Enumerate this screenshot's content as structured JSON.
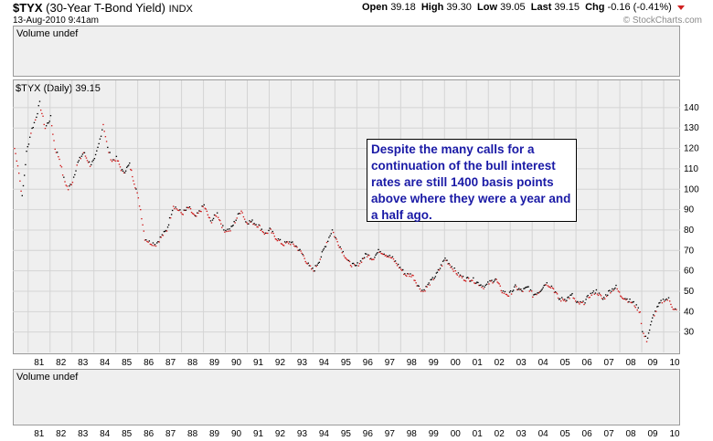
{
  "header": {
    "symbol": "$TYX",
    "name": "(30-Year T-Bond Yield)",
    "exchange": "INDX",
    "date": "13-Aug-2010 9:41am",
    "open_label": "Open",
    "open_value": "39.18",
    "high_label": "High",
    "high_value": "39.30",
    "low_label": "Low",
    "low_value": "39.05",
    "last_label": "Last",
    "last_value": "39.15",
    "chg_label": "Chg",
    "chg_value": "-0.16 (-0.41%)",
    "watermark": "© StockCharts.com"
  },
  "panels": {
    "volume_top_label": "Volume undef",
    "price_label": "$TYX (Daily) 39.15",
    "volume_bottom_label": "Volume undef"
  },
  "annotation": "Despite the many calls for a continuation of the bull interest rates are still 1400 basis points above where they were a year and a half ago.",
  "colors": {
    "up": "#000000",
    "down": "#d01818",
    "panel_bg": "#efefef",
    "annotation_text": "#1a1aa6"
  },
  "chart_data": {
    "type": "line",
    "title": "$TYX (Daily) 39.15",
    "xlabel": "",
    "ylabel": "",
    "x_ticks": [
      "81",
      "82",
      "83",
      "84",
      "85",
      "86",
      "87",
      "88",
      "89",
      "90",
      "91",
      "92",
      "93",
      "94",
      "95",
      "96",
      "97",
      "98",
      "99",
      "00",
      "01",
      "02",
      "03",
      "04",
      "05",
      "06",
      "07",
      "08",
      "09",
      "10"
    ],
    "y_ticks": [
      30,
      40,
      50,
      60,
      70,
      80,
      90,
      100,
      110,
      120,
      130,
      140
    ],
    "ylim": [
      20,
      148
    ],
    "xlim": [
      1980.3,
      2010.75
    ],
    "series": [
      {
        "x": [
          1980.35,
          1980.5,
          1980.7,
          1980.9,
          1981.1,
          1981.3,
          1981.5,
          1981.75,
          1982.0,
          1982.2,
          1982.4,
          1982.6,
          1982.8,
          1983.0,
          1983.2,
          1983.5,
          1983.8,
          1984.0,
          1984.2,
          1984.4,
          1984.6,
          1984.8,
          1985.0,
          1985.3,
          1985.6,
          1985.9,
          1986.1,
          1986.3,
          1986.5,
          1986.8,
          1987.0,
          1987.3,
          1987.6,
          1987.8,
          1988.0,
          1988.3,
          1988.6,
          1989.0,
          1989.3,
          1989.6,
          1989.9,
          1990.2,
          1990.5,
          1990.7,
          1990.9,
          1991.2,
          1991.5,
          1991.8,
          1992.0,
          1992.3,
          1992.6,
          1992.9,
          1993.2,
          1993.5,
          1993.8,
          1994.0,
          1994.3,
          1994.6,
          1994.85,
          1995.0,
          1995.3,
          1995.6,
          1995.9,
          1996.1,
          1996.4,
          1996.7,
          1997.0,
          1997.3,
          1997.6,
          1997.9,
          1998.2,
          1998.5,
          1998.8,
          1999.0,
          1999.3,
          1999.6,
          1999.9,
          2000.0,
          2000.3,
          2000.6,
          2000.9,
          2001.2,
          2001.5,
          2001.8,
          2002.0,
          2002.3,
          2002.6,
          2002.9,
          2003.2,
          2003.5,
          2003.8,
          2004.0,
          2004.3,
          2004.6,
          2004.9,
          2005.2,
          2005.5,
          2005.8,
          2006.0,
          2006.3,
          2006.6,
          2006.9,
          2007.2,
          2007.5,
          2007.8,
          2008.0,
          2008.3,
          2008.6,
          2008.9,
          2009.0,
          2009.2,
          2009.5,
          2009.8,
          2010.0,
          2010.2,
          2010.4,
          2010.6
        ],
        "values": [
          120,
          112,
          96,
          118,
          128,
          134,
          142,
          130,
          135,
          120,
          115,
          105,
          100,
          104,
          112,
          118,
          112,
          114,
          122,
          132,
          120,
          114,
          115,
          108,
          112,
          100,
          90,
          76,
          74,
          73,
          76,
          80,
          92,
          90,
          88,
          91,
          86,
          92,
          84,
          88,
          80,
          80,
          86,
          90,
          84,
          84,
          82,
          78,
          80,
          76,
          73,
          74,
          72,
          68,
          62,
          60,
          66,
          74,
          80,
          76,
          70,
          64,
          62,
          64,
          68,
          66,
          70,
          68,
          66,
          62,
          58,
          58,
          52,
          50,
          54,
          58,
          64,
          66,
          62,
          58,
          56,
          56,
          54,
          52,
          54,
          56,
          50,
          48,
          52,
          50,
          52,
          48,
          50,
          54,
          52,
          46,
          46,
          48,
          44,
          44,
          48,
          50,
          46,
          50,
          52,
          48,
          46,
          44,
          40,
          30,
          26,
          38,
          44,
          46,
          46,
          42,
          40
        ]
      }
    ]
  }
}
